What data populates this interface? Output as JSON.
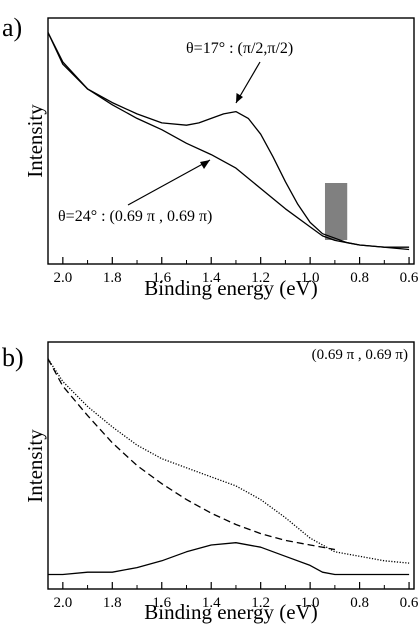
{
  "chart_data": [
    {
      "type": "line",
      "panel_label": "a)",
      "xlabel": "Binding energy (eV)",
      "ylabel": "Intensity",
      "xlim": [
        2.06,
        0.58
      ],
      "x_reversed": true,
      "xticks": [
        "2.0",
        "1.8",
        "1.6",
        "1.4",
        "1.2",
        "1.0",
        "0.8",
        "0.6"
      ],
      "ylim": [
        0,
        1
      ],
      "y_tick_labels_shown": false,
      "grid": false,
      "series": [
        {
          "name": "θ=17° : (π/2,π/2)",
          "x": [
            2.06,
            2.0,
            1.9,
            1.8,
            1.7,
            1.6,
            1.5,
            1.45,
            1.4,
            1.35,
            1.3,
            1.25,
            1.2,
            1.15,
            1.1,
            1.05,
            1.0,
            0.95,
            0.9,
            0.85,
            0.8,
            0.7,
            0.6
          ],
          "y": [
            0.98,
            0.85,
            0.73,
            0.67,
            0.62,
            0.58,
            0.57,
            0.58,
            0.6,
            0.62,
            0.63,
            0.6,
            0.53,
            0.43,
            0.32,
            0.22,
            0.14,
            0.09,
            0.07,
            0.05,
            0.04,
            0.03,
            0.03
          ]
        },
        {
          "name": "θ=24° : (0.69 π , 0.69 π)",
          "x": [
            2.06,
            2.0,
            1.9,
            1.8,
            1.7,
            1.6,
            1.5,
            1.4,
            1.3,
            1.2,
            1.1,
            1.0,
            0.95,
            0.9,
            0.85,
            0.8,
            0.7,
            0.6
          ],
          "y": [
            0.98,
            0.84,
            0.73,
            0.66,
            0.6,
            0.55,
            0.49,
            0.44,
            0.38,
            0.29,
            0.2,
            0.12,
            0.08,
            0.06,
            0.05,
            0.04,
            0.03,
            0.02
          ]
        }
      ],
      "highlight_band": {
        "x": [
          0.94,
          0.85
        ]
      }
    },
    {
      "type": "line",
      "panel_label": "b)",
      "annotation": "(0.69 π , 0.69 π)",
      "xlabel": "Binding energy (eV)",
      "ylabel": "Intensity",
      "xlim": [
        2.06,
        0.58
      ],
      "x_reversed": true,
      "xticks": [
        "2.0",
        "1.8",
        "1.6",
        "1.4",
        "1.2",
        "1.0",
        "0.8",
        "0.6"
      ],
      "ylim": [
        0,
        1
      ],
      "y_tick_labels_shown": false,
      "grid": false,
      "series": [
        {
          "style": "dotted",
          "x": [
            2.06,
            2.0,
            1.9,
            1.8,
            1.7,
            1.6,
            1.5,
            1.4,
            1.3,
            1.2,
            1.1,
            1.0,
            0.9,
            0.8,
            0.7,
            0.6
          ],
          "y": [
            0.97,
            0.87,
            0.76,
            0.67,
            0.59,
            0.53,
            0.49,
            0.45,
            0.41,
            0.35,
            0.27,
            0.18,
            0.12,
            0.1,
            0.08,
            0.07
          ]
        },
        {
          "style": "dashed",
          "x": [
            2.06,
            2.0,
            1.9,
            1.8,
            1.7,
            1.6,
            1.5,
            1.4,
            1.3,
            1.2,
            1.1,
            1.0,
            0.9
          ],
          "y": [
            0.97,
            0.85,
            0.72,
            0.6,
            0.5,
            0.42,
            0.35,
            0.29,
            0.24,
            0.2,
            0.17,
            0.15,
            0.13
          ]
        },
        {
          "style": "solid",
          "x": [
            2.06,
            2.0,
            1.9,
            1.8,
            1.7,
            1.6,
            1.5,
            1.4,
            1.3,
            1.2,
            1.1,
            1.0,
            0.95,
            0.9,
            0.8,
            0.7,
            0.6
          ],
          "y": [
            0.02,
            0.02,
            0.03,
            0.03,
            0.05,
            0.08,
            0.12,
            0.15,
            0.16,
            0.14,
            0.1,
            0.06,
            0.03,
            0.02,
            0.02,
            0.02,
            0.02
          ]
        }
      ]
    }
  ],
  "annotations": {
    "a_label_17": "θ=17° : (π/2,π/2)",
    "a_label_24": "θ=24° : (0.69 π , 0.69 π)"
  }
}
